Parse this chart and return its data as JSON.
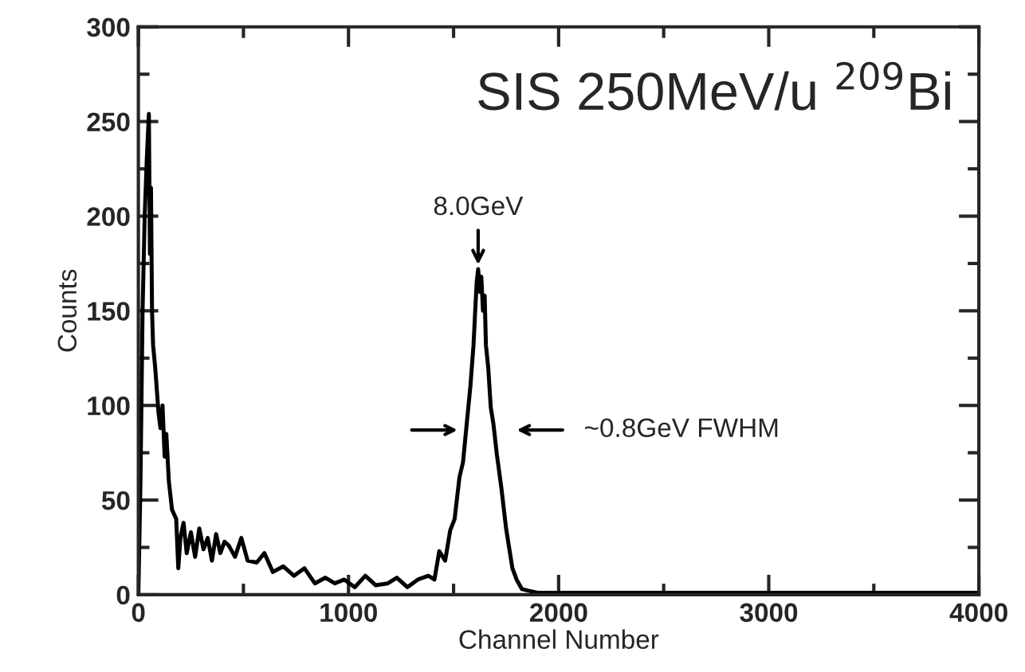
{
  "chart_data": {
    "type": "line",
    "title": "SIS 250MeV/u $^{209}$Bi",
    "xlabel": "Channel Number",
    "ylabel": "Counts",
    "xlim": [
      0,
      4000
    ],
    "ylim": [
      0,
      300
    ],
    "xticks": [
      0,
      1000,
      2000,
      3000,
      4000
    ],
    "yticks": [
      0,
      50,
      100,
      150,
      200,
      250,
      300
    ],
    "grid": false,
    "marker": "none",
    "line_style": "solid",
    "series": [
      {
        "color": "#000000",
        "x": [
          0,
          10,
          20,
          30,
          40,
          50,
          55,
          60,
          65,
          70,
          80,
          90,
          96,
          105,
          115,
          125,
          133,
          145,
          160,
          180,
          190,
          200,
          215,
          230,
          250,
          270,
          290,
          310,
          330,
          350,
          370,
          390,
          410,
          430,
          460,
          490,
          520,
          563,
          600,
          640,
          690,
          740,
          790,
          840,
          890,
          935,
          980,
          1030,
          1080,
          1130,
          1187,
          1230,
          1280,
          1330,
          1380,
          1409,
          1432,
          1460,
          1484,
          1505,
          1528,
          1545,
          1565,
          1580,
          1595,
          1603,
          1610,
          1617,
          1625,
          1632,
          1640,
          1648,
          1654,
          1665,
          1677,
          1690,
          1705,
          1728,
          1750,
          1780,
          1800,
          1825,
          1860,
          1900,
          2000,
          2200,
          2500,
          2800,
          3100,
          3400,
          3700,
          4000
        ],
        "values": [
          0,
          60,
          150,
          200,
          230,
          254,
          180,
          215,
          150,
          132,
          120,
          105,
          96,
          88,
          100,
          73,
          85,
          60,
          45,
          40,
          14,
          30,
          38,
          22,
          33,
          20,
          35,
          24,
          30,
          18,
          32,
          22,
          28,
          26,
          20,
          30,
          18,
          17,
          22,
          12,
          15,
          10,
          14,
          6,
          9,
          6,
          8,
          4,
          10,
          5,
          6,
          9,
          4,
          8,
          10,
          8,
          23,
          18,
          34,
          40,
          62,
          70,
          93,
          110,
          132,
          150,
          165,
          172,
          160,
          168,
          150,
          158,
          132,
          120,
          99,
          90,
          75,
          56,
          35,
          14,
          8,
          3,
          2,
          1,
          1,
          1,
          1,
          1,
          1,
          1,
          1,
          1
        ]
      }
    ],
    "annotations": [
      {
        "text": "8.0GeV",
        "x": 1617,
        "y": 172
      },
      "~0.8GeV FWHM"
    ]
  }
}
